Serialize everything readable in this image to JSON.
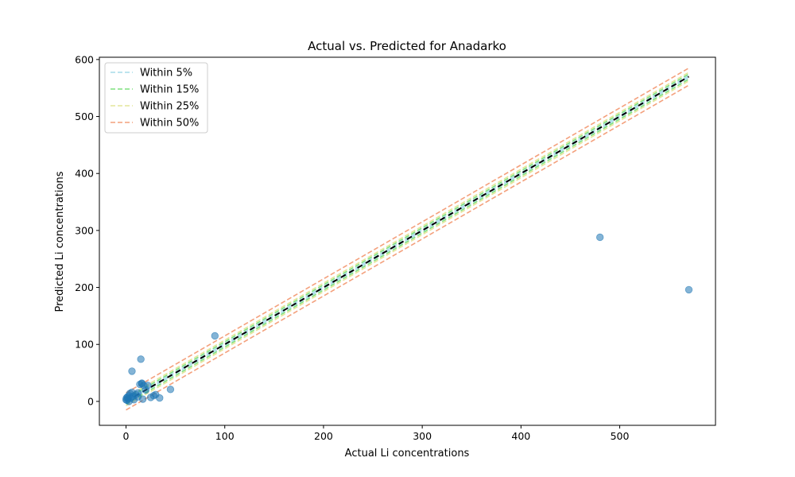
{
  "chart_data": {
    "type": "scatter",
    "title": "Actual vs. Predicted for Anadarko",
    "xlabel": "Actual Li concentrations",
    "ylabel": "Predicted Li concentrations",
    "xlim": [
      -27,
      597
    ],
    "ylim": [
      -42,
      604
    ],
    "xticks": [
      0,
      100,
      200,
      300,
      400,
      500
    ],
    "yticks": [
      0,
      100,
      200,
      300,
      400,
      500,
      600
    ],
    "grid": false,
    "legend_position": "top-left",
    "points": {
      "name": "",
      "color": "#1f77b4",
      "x": [
        0,
        0.5,
        1,
        1.5,
        2,
        3,
        4,
        5,
        6,
        8,
        10,
        12,
        14,
        15,
        16,
        17,
        18,
        20,
        22,
        25,
        28,
        30,
        34,
        45,
        6,
        16,
        90,
        480,
        570,
        3,
        7,
        12
      ],
      "y": [
        3,
        6,
        2,
        8,
        5,
        10,
        14,
        6,
        53,
        3,
        12,
        8,
        30,
        74,
        32,
        4,
        28,
        20,
        28,
        7,
        10,
        12,
        6,
        21,
        16,
        31,
        115,
        288,
        196,
        0,
        9,
        15
      ]
    },
    "reference_line": {
      "x": [
        0,
        570
      ],
      "y": [
        0,
        570
      ],
      "color": "#000000"
    },
    "bands": [
      {
        "name": "Within 5%",
        "color": "#a6dce9",
        "offset": 1.5
      },
      {
        "name": "Within 15%",
        "color": "#7fe07f",
        "offset": 4.5
      },
      {
        "name": "Within 25%",
        "color": "#e4e59a",
        "offset": 7.5
      },
      {
        "name": "Within 50%",
        "color": "#f4a07c",
        "offset": 15
      }
    ]
  }
}
